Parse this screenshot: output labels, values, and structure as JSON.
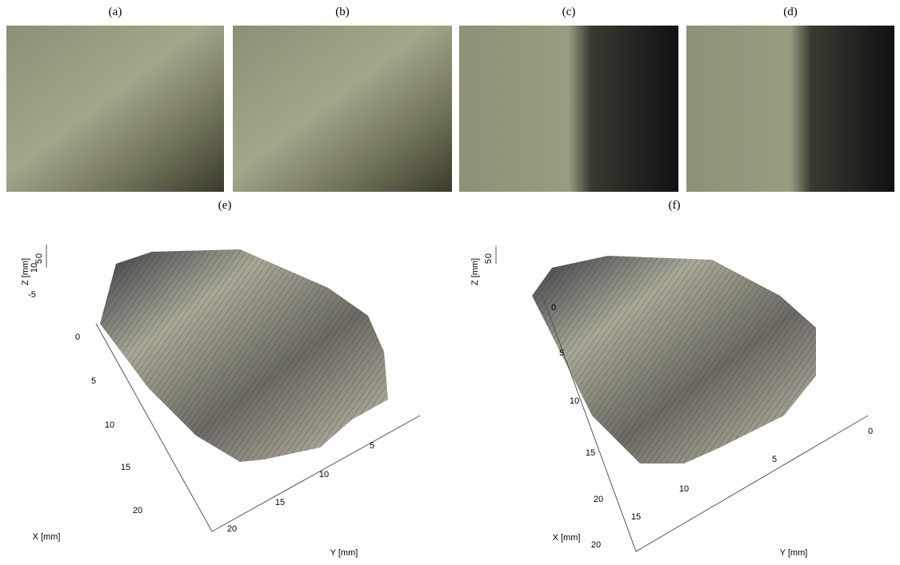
{
  "panels": [
    {
      "label": "(a)"
    },
    {
      "label": "(b)"
    },
    {
      "label": "(c)"
    },
    {
      "label": "(d)"
    }
  ],
  "plots": [
    {
      "label": "(e)",
      "z_label": "Z [mm]",
      "x_label": "X [mm]",
      "y_label": "Y [mm]",
      "z_ticks": [
        0,
        5,
        10,
        -5
      ],
      "x_ticks": [
        0,
        5,
        10,
        15,
        20
      ],
      "y_ticks": [
        20,
        15,
        10,
        5
      ]
    },
    {
      "label": "(f)",
      "z_label": "Z [mm]",
      "x_label": "X [mm]",
      "y_label": "Y [mm]",
      "z_ticks": [
        0,
        5
      ],
      "x_ticks": [
        0,
        5,
        10,
        15,
        20
      ],
      "y_ticks": [
        20,
        15,
        10,
        5,
        0
      ]
    }
  ]
}
